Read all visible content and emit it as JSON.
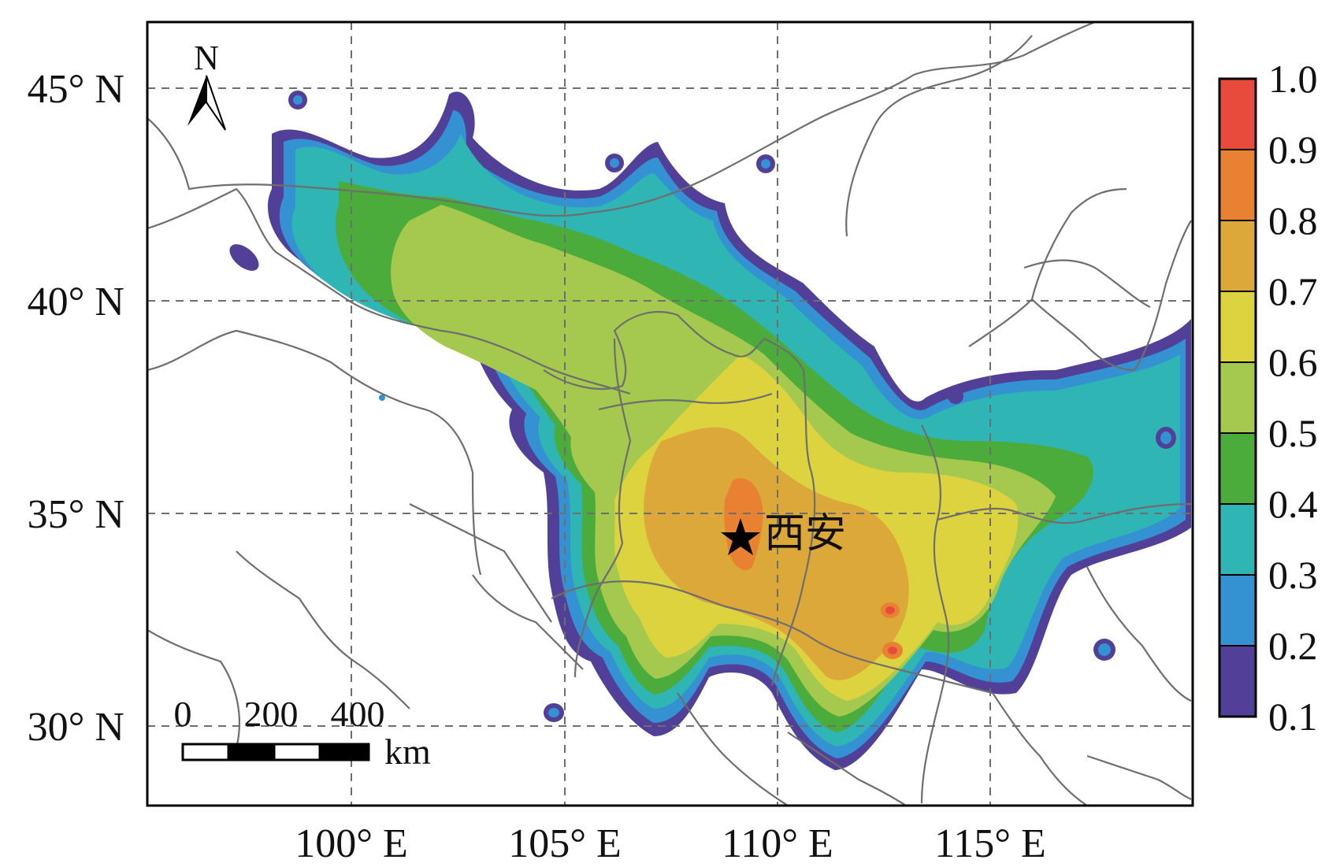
{
  "map": {
    "lat_labels": [
      "45° N",
      "40° N",
      "35° N",
      "30° N"
    ],
    "lon_labels": [
      "100° E",
      "105° E",
      "110° E",
      "115° E"
    ],
    "north_label": "N",
    "city": {
      "name": "西安",
      "marker": "star-icon"
    },
    "scale_bar": {
      "ticks": [
        "0",
        "200",
        "400"
      ],
      "unit": "km"
    }
  },
  "legend": {
    "labels": [
      "1.0",
      "0.9",
      "0.8",
      "0.7",
      "0.6",
      "0.5",
      "0.4",
      "0.3",
      "0.2",
      "0.1"
    ],
    "colors": [
      "#e84a3c",
      "#e88131",
      "#dda83a",
      "#dcd33f",
      "#a4c94e",
      "#4bab3b",
      "#2fb5b3",
      "#3492d2",
      "#523f97"
    ]
  }
}
